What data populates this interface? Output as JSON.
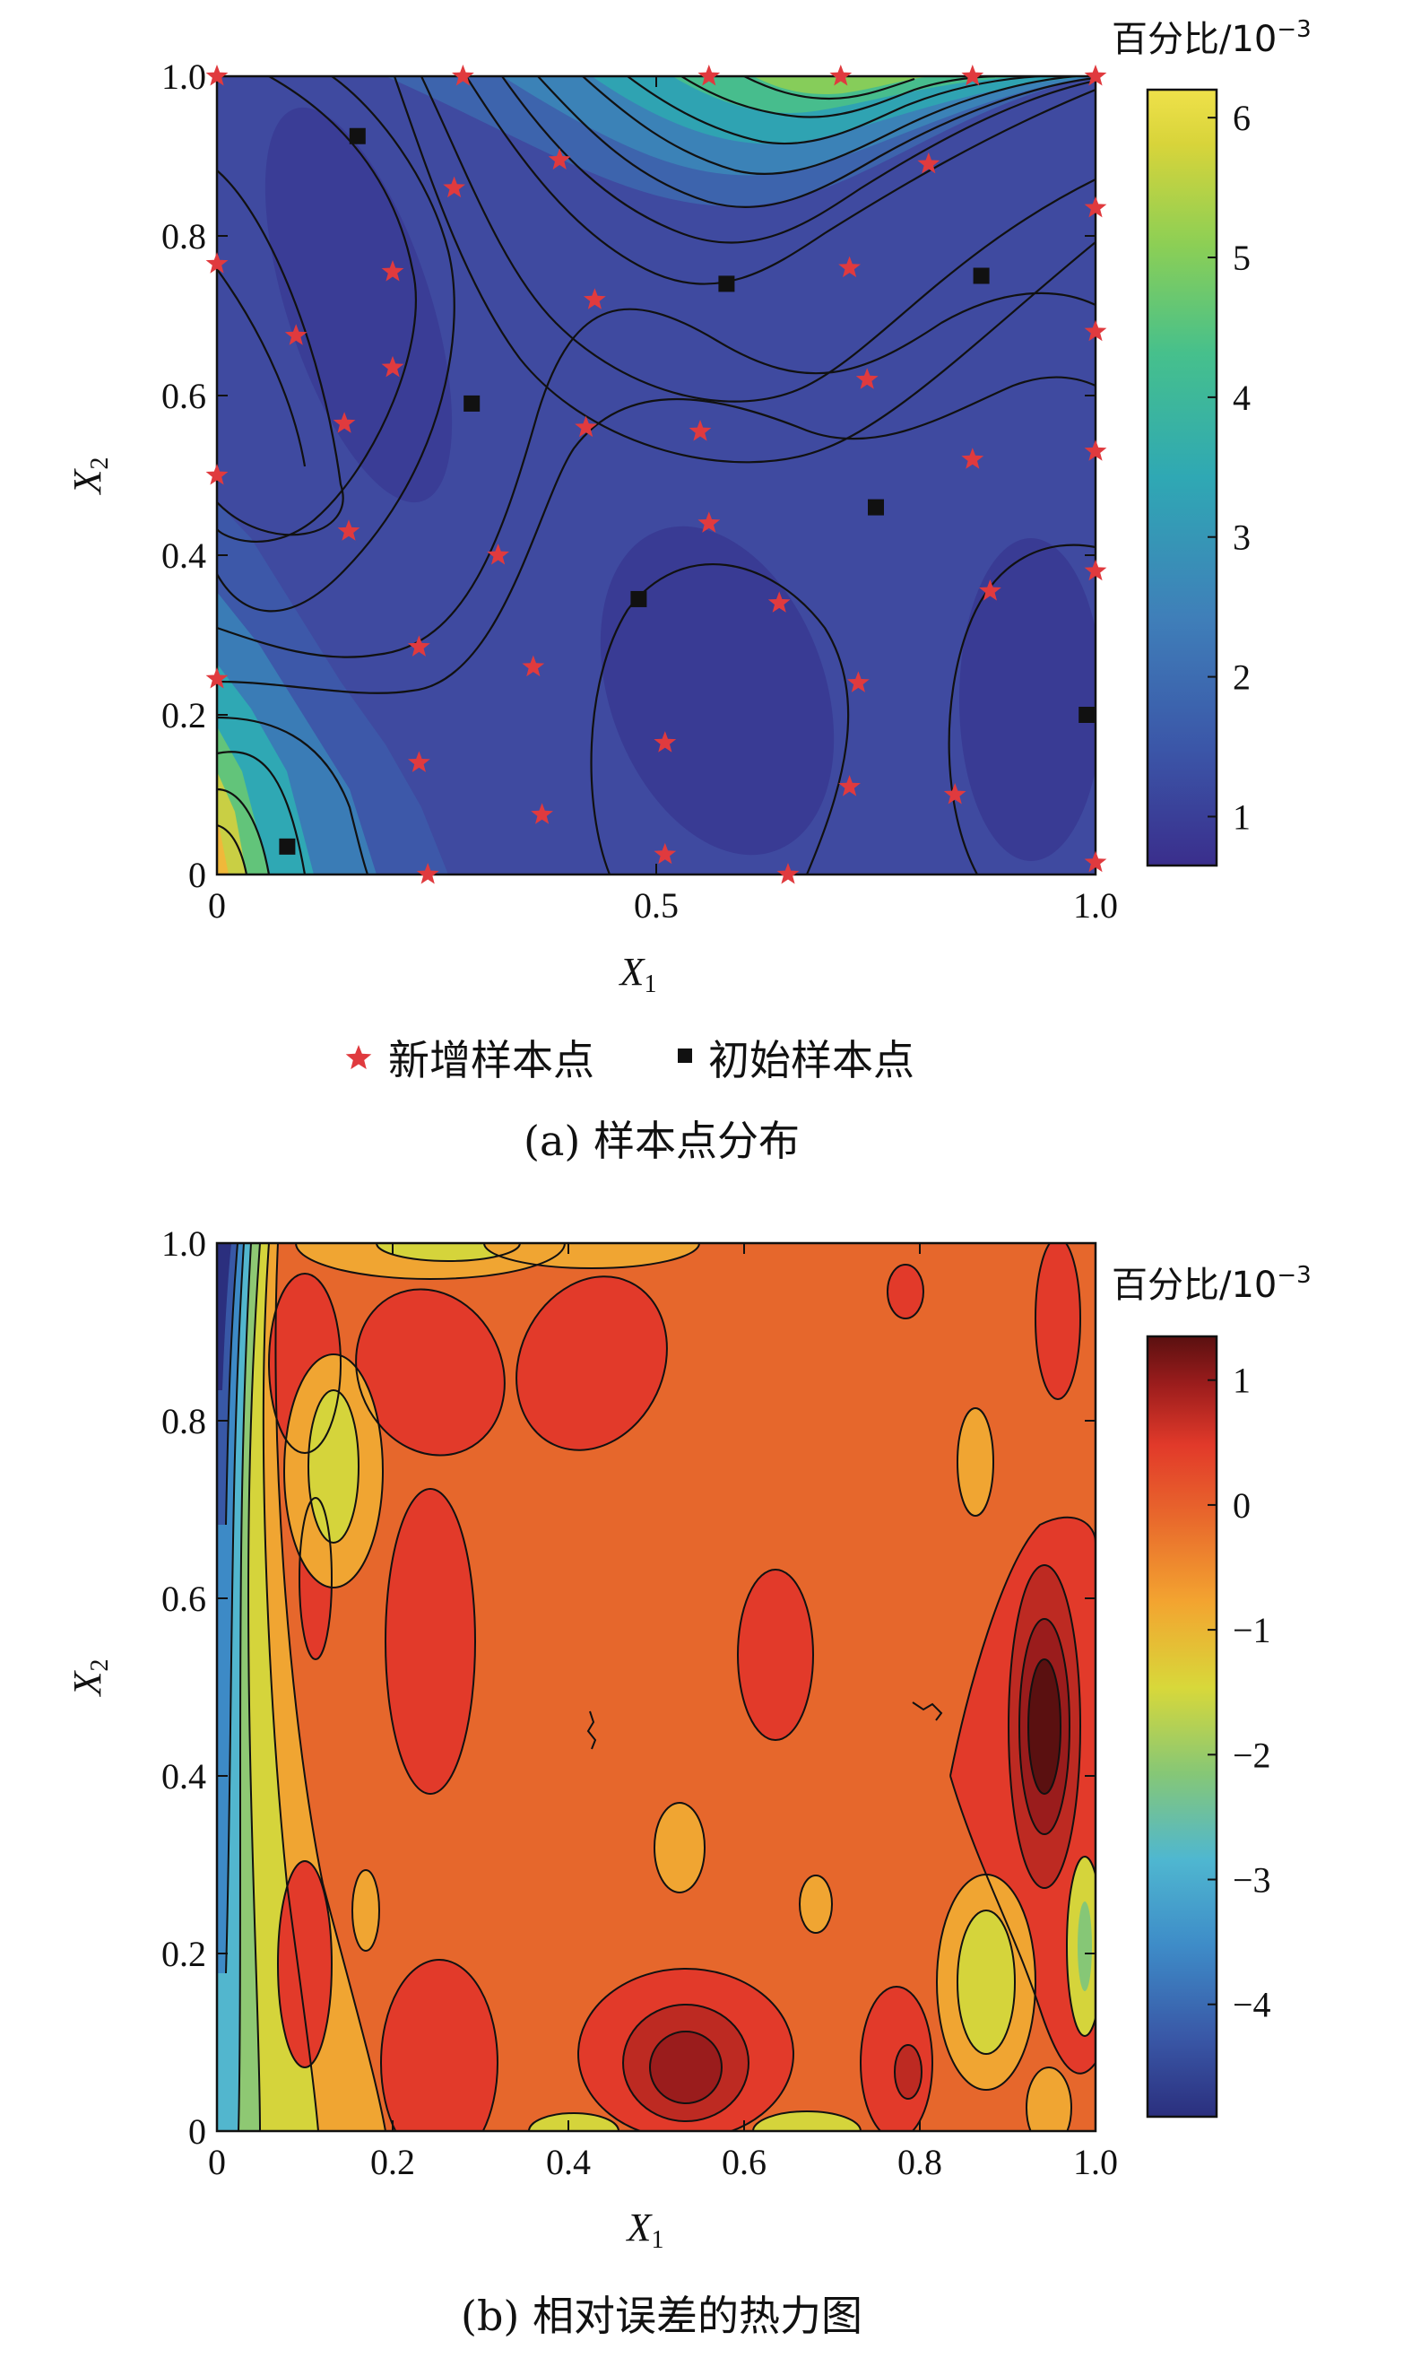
{
  "chart_data": [
    {
      "type": "heatmap",
      "panel": "a",
      "caption": "(a) 样本点分布",
      "xlabel": "X1",
      "ylabel": "X2",
      "xlim": [
        0,
        1
      ],
      "ylim": [
        0,
        1
      ],
      "xticks": [
        "0",
        "0.5",
        "1.0"
      ],
      "yticks": [
        "0",
        "0.2",
        "0.4",
        "0.6",
        "0.8",
        "1.0"
      ],
      "colorbar": {
        "title": "百分比/10",
        "title_exp": "−3",
        "range": [
          0.65,
          6.2
        ],
        "ticks": [
          "1",
          "2",
          "3",
          "4",
          "5",
          "6"
        ],
        "colormap": [
          "#3a2e8c",
          "#3b56a8",
          "#3f7fb9",
          "#2fa8b4",
          "#46c08c",
          "#8ccf55",
          "#d8d43a",
          "#efe14a"
        ]
      },
      "legend": [
        {
          "label": "新增样本点",
          "marker": "star",
          "color": "#e03a3e"
        },
        {
          "label": "初始样本点",
          "marker": "square",
          "color": "#111111"
        }
      ],
      "new_samples": [
        [
          0.0,
          1.0
        ],
        [
          0.28,
          1.0
        ],
        [
          0.56,
          1.0
        ],
        [
          0.71,
          1.0
        ],
        [
          0.86,
          1.0
        ],
        [
          1.0,
          1.0
        ],
        [
          0.39,
          0.895
        ],
        [
          0.81,
          0.89
        ],
        [
          0.27,
          0.86
        ],
        [
          1.0,
          0.835
        ],
        [
          0.0,
          0.765
        ],
        [
          0.2,
          0.755
        ],
        [
          0.72,
          0.76
        ],
        [
          0.43,
          0.72
        ],
        [
          0.09,
          0.675
        ],
        [
          1.0,
          0.68
        ],
        [
          0.2,
          0.635
        ],
        [
          0.74,
          0.62
        ],
        [
          0.145,
          0.565
        ],
        [
          0.42,
          0.56
        ],
        [
          0.55,
          0.555
        ],
        [
          0.86,
          0.52
        ],
        [
          1.0,
          0.53
        ],
        [
          0.0,
          0.5
        ],
        [
          0.15,
          0.43
        ],
        [
          0.56,
          0.44
        ],
        [
          0.32,
          0.4
        ],
        [
          1.0,
          0.38
        ],
        [
          0.88,
          0.355
        ],
        [
          0.64,
          0.34
        ],
        [
          0.23,
          0.285
        ],
        [
          0.36,
          0.26
        ],
        [
          0.0,
          0.245
        ],
        [
          0.73,
          0.24
        ],
        [
          0.51,
          0.165
        ],
        [
          0.23,
          0.14
        ],
        [
          0.72,
          0.11
        ],
        [
          0.84,
          0.1
        ],
        [
          0.37,
          0.075
        ],
        [
          0.51,
          0.025
        ],
        [
          0.24,
          0.0
        ],
        [
          0.65,
          0.0
        ],
        [
          1.0,
          0.015
        ]
      ],
      "initial_samples": [
        [
          0.16,
          0.925
        ],
        [
          0.58,
          0.74
        ],
        [
          0.87,
          0.75
        ],
        [
          0.29,
          0.59
        ],
        [
          0.75,
          0.46
        ],
        [
          0.48,
          0.345
        ],
        [
          0.99,
          0.2
        ],
        [
          0.08,
          0.035
        ]
      ]
    },
    {
      "type": "heatmap",
      "panel": "b",
      "caption": "(b) 相对误差的热力图",
      "xlabel": "X1",
      "ylabel": "X2",
      "xlim": [
        0,
        1
      ],
      "ylim": [
        0,
        1
      ],
      "xticks": [
        "0",
        "0.2",
        "0.4",
        "0.6",
        "0.8",
        "1.0"
      ],
      "yticks": [
        "0",
        "0.2",
        "0.4",
        "0.6",
        "0.8",
        "1.0"
      ],
      "colorbar": {
        "title": "百分比/10",
        "title_exp": "−3",
        "range": [
          -4.9,
          1.35
        ],
        "ticks": [
          "1",
          "0",
          "−1",
          "−2",
          "−3",
          "−4"
        ],
        "tick_values": [
          1,
          0,
          -1,
          -2,
          -3,
          -4
        ],
        "colormap": [
          "#2b2f7e",
          "#3957a6",
          "#3e8cc8",
          "#4fb7d0",
          "#86c776",
          "#d8d83a",
          "#f3a430",
          "#e8672c",
          "#e23a2a",
          "#9a1c1c",
          "#5a1010"
        ]
      }
    }
  ]
}
